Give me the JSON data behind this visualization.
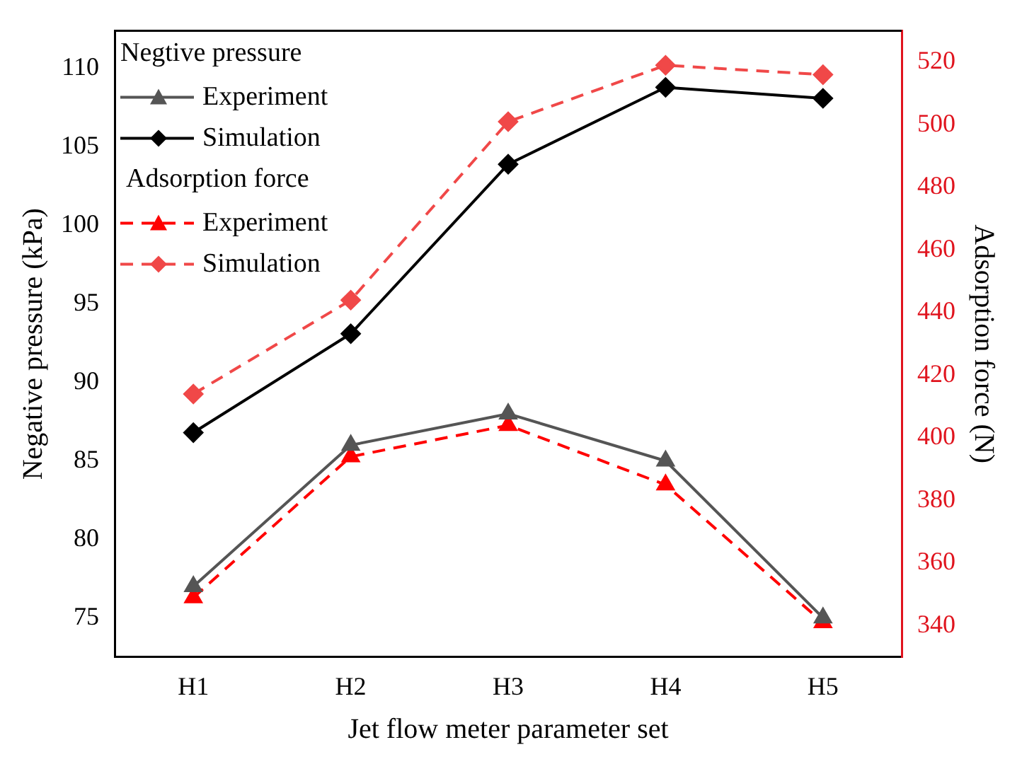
{
  "chart_data": {
    "type": "line",
    "xlabel": "Jet flow meter parameter set",
    "ylabel": "Negative pressure (kPa)",
    "y2label": "Adsorption force (N)",
    "categories": [
      "H1",
      "H2",
      "H3",
      "H4",
      "H5"
    ],
    "series": [
      {
        "name": "Experiment",
        "color": "#555555",
        "values": [
          77,
          86,
          88,
          85,
          75
        ],
        "marker": "triangle",
        "line_style": "solid"
      },
      {
        "name": "Simulation",
        "color": "#000000",
        "values": [
          86.8,
          93.1,
          103.9,
          108.8,
          108.1
        ],
        "marker": "diamond",
        "line_style": "solid"
      },
      {
        "name": "Experiment",
        "color": "#ff0000",
        "values": [
          349,
          394,
          404,
          385,
          341
        ],
        "marker": "triangle",
        "line_style": "dashed",
        "axis": "y2"
      },
      {
        "name": "Simulation",
        "color": "#f04848",
        "values": [
          414,
          444,
          501,
          519,
          516
        ],
        "marker": "diamond",
        "line_style": "dashed",
        "axis": "y2"
      }
    ],
    "ylim": [
      72.5,
      112.4
    ],
    "yticks": [
      75,
      80,
      85,
      90,
      95,
      100,
      105,
      110
    ],
    "y2lim": [
      330,
      530
    ],
    "y2ticks": [
      340,
      360,
      380,
      400,
      420,
      440,
      460,
      480,
      500,
      520
    ],
    "annotations": [
      "Negtive pressure",
      "Adsorption force"
    ],
    "legend": "top left",
    "grid": false
  }
}
